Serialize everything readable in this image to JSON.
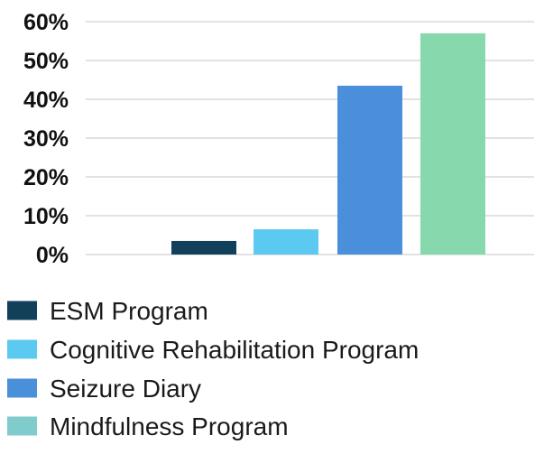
{
  "chart_data": {
    "type": "bar",
    "categories": [
      "ESM Program",
      "Cognitive Rehabilitation Program",
      "Seizure Diary",
      "Mindfulness Program"
    ],
    "values": [
      3.5,
      6.5,
      43.5,
      57.0
    ],
    "colors": [
      "#123f5a",
      "#5ccaf0",
      "#4a8fda",
      "#88d8ad"
    ],
    "legend": [
      {
        "label": "ESM Program",
        "color": "#123f5a"
      },
      {
        "label": "Cognitive Rehabilitation Program",
        "color": "#5ccaf0"
      },
      {
        "label": "Seizure Diary",
        "color": "#4a8fda"
      },
      {
        "label": "Mindfulness Program",
        "color": "#80cccc"
      }
    ],
    "y_ticks": [
      "0%",
      "10%",
      "20%",
      "30%",
      "40%",
      "50%",
      "60%"
    ],
    "ylim": [
      0,
      60
    ],
    "grid": true,
    "legend_position": "bottom",
    "title": "",
    "xlabel": "",
    "ylabel": ""
  }
}
